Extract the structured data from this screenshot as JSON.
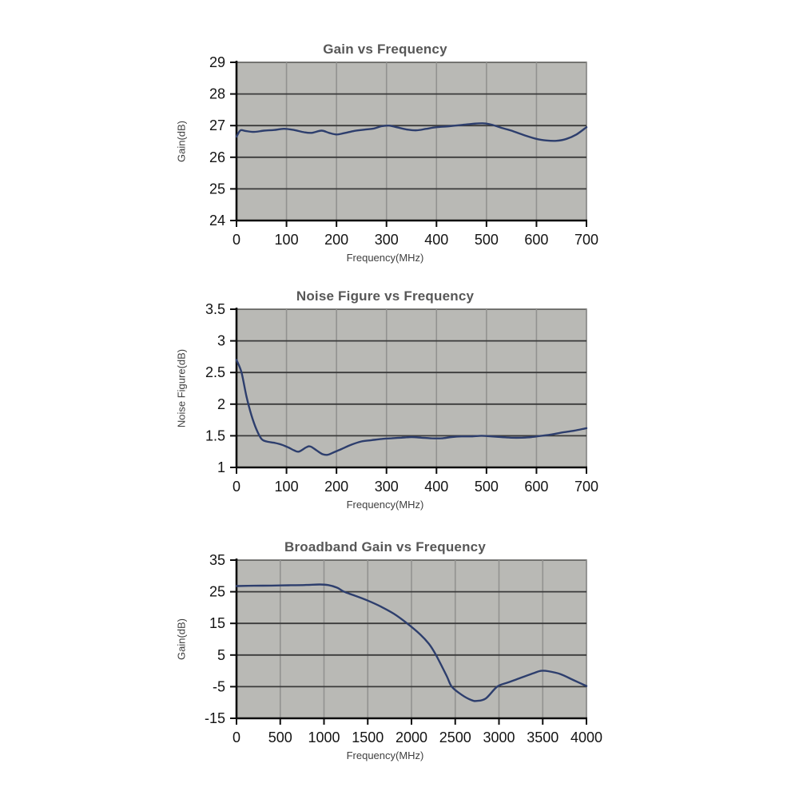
{
  "page": {
    "background": "#ffffff"
  },
  "colors": {
    "plot_bg": "#b9b9b5",
    "plot_border": "#4a4a48",
    "grid_vertical": "#929290",
    "grid_horizontal": "#3a3a3a",
    "axis": "#0d0d0d",
    "line": "#2d3e6d",
    "title": "#575757",
    "tick_label": "#141414",
    "axis_label": "#3f3f3f"
  },
  "chart_data": [
    {
      "type": "line",
      "title": "Gain vs Frequency",
      "xlabel": "Frequency(MHz)",
      "ylabel": "Gain(dB)",
      "xlim": [
        0,
        700
      ],
      "ylim": [
        24,
        29
      ],
      "grid": true,
      "legend": "none",
      "xtick_values": [
        0,
        100,
        200,
        300,
        400,
        500,
        600,
        700
      ],
      "xtick_labels": [
        "0",
        "100",
        "200",
        "300",
        "400",
        "500",
        "600",
        "700"
      ],
      "ytick_values": [
        24,
        25,
        26,
        27,
        28,
        29
      ],
      "ytick_labels": [
        "24",
        "25",
        "26",
        "27",
        "28",
        "29"
      ],
      "series": [
        {
          "name": "Gain",
          "points": [
            [
              0,
              26.65
            ],
            [
              8,
              26.85
            ],
            [
              18,
              26.83
            ],
            [
              35,
              26.8
            ],
            [
              55,
              26.84
            ],
            [
              75,
              26.86
            ],
            [
              95,
              26.9
            ],
            [
              115,
              26.86
            ],
            [
              135,
              26.79
            ],
            [
              150,
              26.77
            ],
            [
              170,
              26.84
            ],
            [
              185,
              26.77
            ],
            [
              200,
              26.72
            ],
            [
              215,
              26.76
            ],
            [
              235,
              26.83
            ],
            [
              255,
              26.87
            ],
            [
              275,
              26.91
            ],
            [
              290,
              26.98
            ],
            [
              305,
              27.0
            ],
            [
              320,
              26.95
            ],
            [
              340,
              26.88
            ],
            [
              360,
              26.85
            ],
            [
              380,
              26.9
            ],
            [
              400,
              26.95
            ],
            [
              425,
              26.98
            ],
            [
              450,
              27.02
            ],
            [
              475,
              27.06
            ],
            [
              495,
              27.07
            ],
            [
              510,
              27.03
            ],
            [
              530,
              26.93
            ],
            [
              550,
              26.84
            ],
            [
              575,
              26.7
            ],
            [
              600,
              26.58
            ],
            [
              620,
              26.53
            ],
            [
              640,
              26.52
            ],
            [
              660,
              26.58
            ],
            [
              680,
              26.72
            ],
            [
              700,
              26.95
            ]
          ]
        }
      ]
    },
    {
      "type": "line",
      "title": "Noise Figure vs Frequency",
      "xlabel": "Frequency(MHz)",
      "ylabel": "Noise Figure(dB)",
      "xlim": [
        0,
        700
      ],
      "ylim": [
        1,
        3.5
      ],
      "grid": true,
      "legend": "none",
      "xtick_values": [
        0,
        100,
        200,
        300,
        400,
        500,
        600,
        700
      ],
      "xtick_labels": [
        "0",
        "100",
        "200",
        "300",
        "400",
        "500",
        "600",
        "700"
      ],
      "ytick_values": [
        1,
        1.5,
        2,
        2.5,
        3,
        3.5
      ],
      "ytick_labels": [
        "1",
        "1.5",
        "2",
        "2.5",
        "3",
        "3.5"
      ],
      "series": [
        {
          "name": "Noise Figure",
          "points": [
            [
              0,
              2.7
            ],
            [
              10,
              2.5
            ],
            [
              20,
              2.12
            ],
            [
              30,
              1.82
            ],
            [
              40,
              1.6
            ],
            [
              50,
              1.45
            ],
            [
              60,
              1.41
            ],
            [
              75,
              1.39
            ],
            [
              90,
              1.36
            ],
            [
              105,
              1.31
            ],
            [
              115,
              1.27
            ],
            [
              125,
              1.25
            ],
            [
              140,
              1.32
            ],
            [
              148,
              1.33
            ],
            [
              160,
              1.27
            ],
            [
              172,
              1.21
            ],
            [
              182,
              1.2
            ],
            [
              195,
              1.24
            ],
            [
              210,
              1.29
            ],
            [
              230,
              1.36
            ],
            [
              250,
              1.41
            ],
            [
              270,
              1.43
            ],
            [
              290,
              1.45
            ],
            [
              310,
              1.46
            ],
            [
              330,
              1.47
            ],
            [
              350,
              1.48
            ],
            [
              370,
              1.47
            ],
            [
              390,
              1.46
            ],
            [
              410,
              1.46
            ],
            [
              430,
              1.48
            ],
            [
              450,
              1.49
            ],
            [
              470,
              1.49
            ],
            [
              490,
              1.5
            ],
            [
              510,
              1.49
            ],
            [
              530,
              1.48
            ],
            [
              550,
              1.47
            ],
            [
              570,
              1.47
            ],
            [
              590,
              1.48
            ],
            [
              610,
              1.5
            ],
            [
              630,
              1.52
            ],
            [
              650,
              1.55
            ],
            [
              675,
              1.58
            ],
            [
              700,
              1.62
            ]
          ]
        }
      ]
    },
    {
      "type": "line",
      "title": "Broadband Gain vs Frequency",
      "xlabel": "Frequency(MHz)",
      "ylabel": "Gain(dB)",
      "xlim": [
        0,
        4000
      ],
      "ylim": [
        -15,
        35
      ],
      "grid": true,
      "legend": "none",
      "xtick_values": [
        0,
        500,
        1000,
        1500,
        2000,
        2500,
        3000,
        3500,
        4000
      ],
      "xtick_labels": [
        "0",
        "500",
        "1000",
        "1500",
        "2000",
        "2500",
        "3000",
        "3500",
        "4000"
      ],
      "ytick_values": [
        -15,
        -5,
        5,
        15,
        25,
        35
      ],
      "ytick_labels": [
        "-15",
        "-5",
        "5",
        "15",
        "25",
        "35"
      ],
      "series": [
        {
          "name": "Broadband Gain",
          "points": [
            [
              0,
              26.8
            ],
            [
              200,
              26.9
            ],
            [
              400,
              26.95
            ],
            [
              600,
              27.05
            ],
            [
              800,
              27.15
            ],
            [
              950,
              27.3
            ],
            [
              1050,
              27.1
            ],
            [
              1150,
              26.3
            ],
            [
              1230,
              25.0
            ],
            [
              1350,
              23.8
            ],
            [
              1500,
              22.2
            ],
            [
              1650,
              20.3
            ],
            [
              1800,
              18.0
            ],
            [
              1950,
              15.0
            ],
            [
              2100,
              11.5
            ],
            [
              2200,
              8.5
            ],
            [
              2280,
              5.0
            ],
            [
              2400,
              -1.5
            ],
            [
              2460,
              -5.0
            ],
            [
              2570,
              -7.5
            ],
            [
              2680,
              -9.2
            ],
            [
              2750,
              -9.5
            ],
            [
              2850,
              -8.7
            ],
            [
              2980,
              -5.0
            ],
            [
              3100,
              -3.7
            ],
            [
              3250,
              -2.2
            ],
            [
              3400,
              -0.7
            ],
            [
              3480,
              0.0
            ],
            [
              3560,
              -0.1
            ],
            [
              3700,
              -1.0
            ],
            [
              3850,
              -2.9
            ],
            [
              4000,
              -4.8
            ]
          ]
        }
      ]
    }
  ]
}
